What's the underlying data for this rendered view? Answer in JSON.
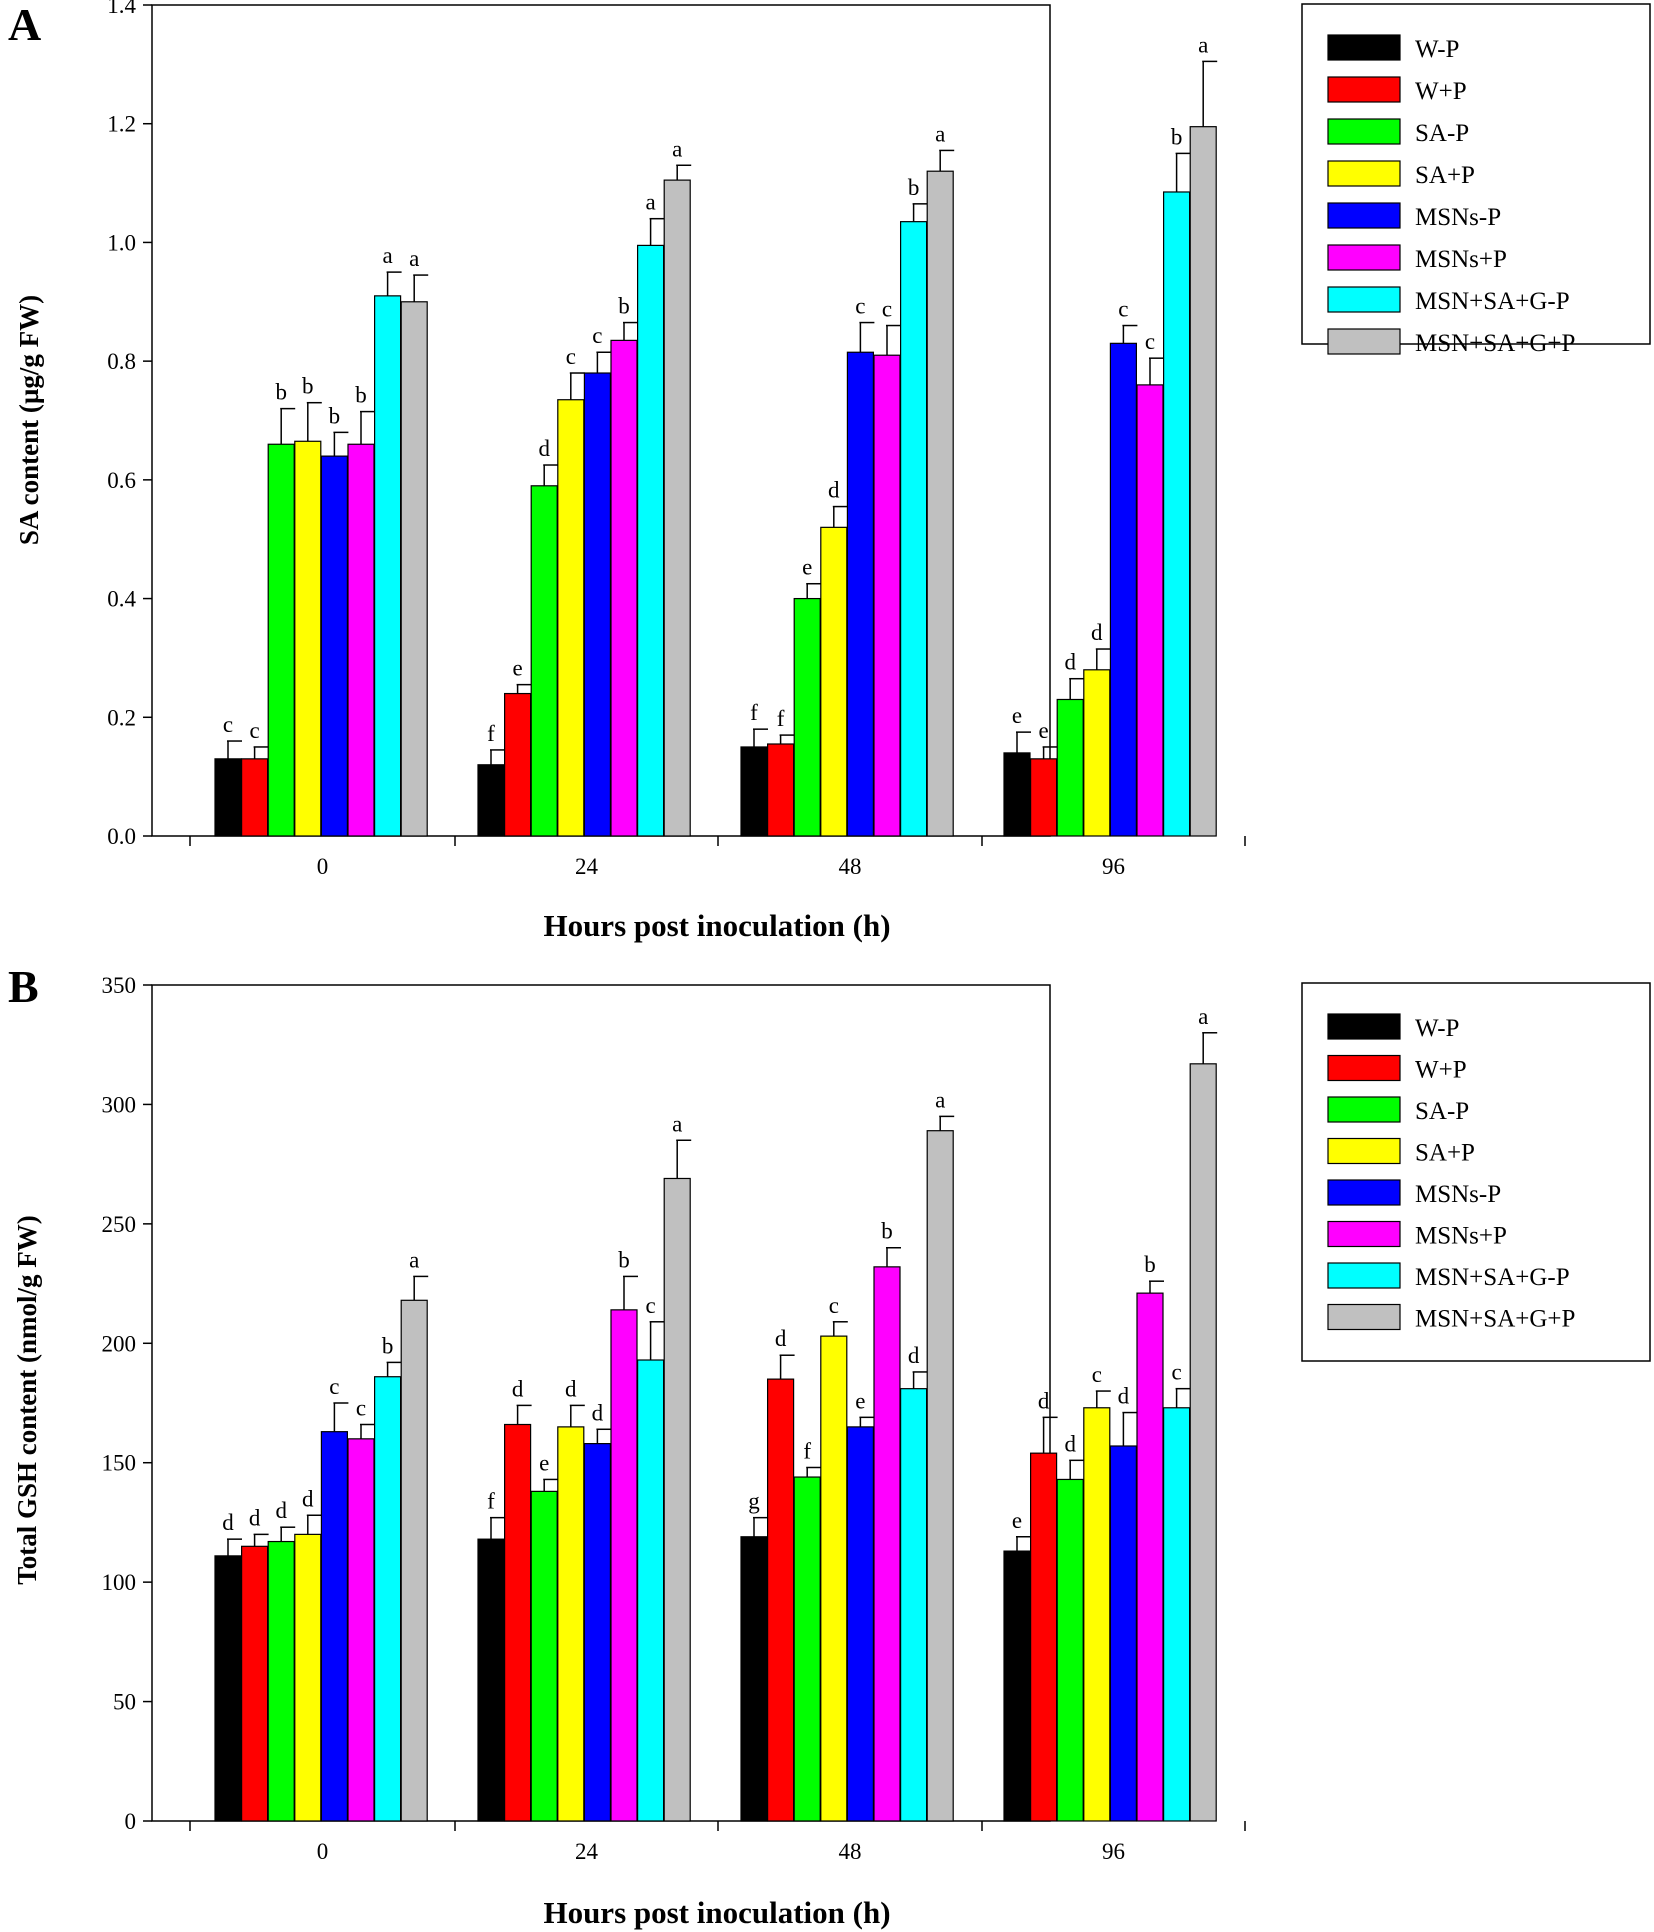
{
  "chart_data": [
    {
      "type": "bar",
      "panel": "A",
      "xlabel": "Hours post inoculation (h)",
      "ylabel": "SA content (µg/g FW)",
      "categories": [
        "0",
        "24",
        "48",
        "96"
      ],
      "ylim": [
        0,
        1.4
      ],
      "yticks": [
        "0.0",
        "0.2",
        "0.4",
        "0.6",
        "0.8",
        "1.0",
        "1.2",
        "1.4"
      ],
      "legend_position": "right",
      "series": [
        {
          "name": "W-P",
          "color": "#000000",
          "values": [
            0.13,
            0.12,
            0.15,
            0.14
          ],
          "errors": [
            0.03,
            0.025,
            0.03,
            0.035
          ],
          "labels": [
            "c",
            "f",
            "f",
            "e"
          ]
        },
        {
          "name": "W+P",
          "color": "#ff0000",
          "values": [
            0.13,
            0.24,
            0.155,
            0.13
          ],
          "errors": [
            0.02,
            0.015,
            0.015,
            0.02
          ],
          "labels": [
            "c",
            "e",
            "f",
            "e"
          ]
        },
        {
          "name": "SA-P",
          "color": "#00ff00",
          "values": [
            0.66,
            0.59,
            0.4,
            0.23
          ],
          "errors": [
            0.06,
            0.035,
            0.025,
            0.035
          ],
          "labels": [
            "b",
            "d",
            "e",
            "d"
          ]
        },
        {
          "name": "SA+P",
          "color": "#ffff00",
          "values": [
            0.665,
            0.735,
            0.52,
            0.28
          ],
          "errors": [
            0.065,
            0.045,
            0.035,
            0.035
          ],
          "labels": [
            "b",
            "c",
            "d",
            "d"
          ]
        },
        {
          "name": "MSNs-P",
          "color": "#0000ff",
          "values": [
            0.64,
            0.78,
            0.815,
            0.83
          ],
          "errors": [
            0.04,
            0.035,
            0.05,
            0.03
          ],
          "labels": [
            "b",
            "c",
            "c",
            "c"
          ]
        },
        {
          "name": "MSNs+P",
          "color": "#ff00ff",
          "values": [
            0.66,
            0.835,
            0.81,
            0.76
          ],
          "errors": [
            0.055,
            0.03,
            0.05,
            0.045
          ],
          "labels": [
            "b",
            "b",
            "c",
            "c"
          ]
        },
        {
          "name": "MSN+SA+G-P",
          "color": "#00ffff",
          "values": [
            0.91,
            0.995,
            1.035,
            1.085
          ],
          "errors": [
            0.04,
            0.045,
            0.03,
            0.065
          ],
          "labels": [
            "a",
            "a",
            "b",
            "b"
          ]
        },
        {
          "name": "MSN+SA+G+P",
          "color": "#c0c0c0",
          "values": [
            0.9,
            1.105,
            1.12,
            1.195
          ],
          "errors": [
            0.045,
            0.025,
            0.035,
            0.11
          ],
          "labels": [
            "a",
            "a",
            "a",
            "a"
          ]
        }
      ]
    },
    {
      "type": "bar",
      "panel": "B",
      "xlabel": "Hours post inoculation (h)",
      "ylabel": "Total GSH content (nmol/g FW)",
      "categories": [
        "0",
        "24",
        "48",
        "96"
      ],
      "ylim": [
        0,
        350
      ],
      "yticks": [
        "0",
        "50",
        "100",
        "150",
        "200",
        "250",
        "300",
        "350"
      ],
      "legend_position": "right",
      "series": [
        {
          "name": "W-P",
          "color": "#000000",
          "values": [
            111,
            118,
            119,
            113
          ],
          "errors": [
            7,
            9,
            8,
            6
          ],
          "labels": [
            "d",
            "f",
            "g",
            "e"
          ]
        },
        {
          "name": "W+P",
          "color": "#ff0000",
          "values": [
            115,
            166,
            185,
            154
          ],
          "errors": [
            5,
            8,
            10,
            15
          ],
          "labels": [
            "d",
            "d",
            "d",
            "d"
          ]
        },
        {
          "name": "SA-P",
          "color": "#00ff00",
          "values": [
            117,
            138,
            144,
            143
          ],
          "errors": [
            6,
            5,
            4,
            8
          ],
          "labels": [
            "d",
            "e",
            "f",
            "d"
          ]
        },
        {
          "name": "SA+P",
          "color": "#ffff00",
          "values": [
            120,
            165,
            203,
            173
          ],
          "errors": [
            8,
            9,
            6,
            7
          ],
          "labels": [
            "d",
            "d",
            "c",
            "c"
          ]
        },
        {
          "name": "MSNs-P",
          "color": "#0000ff",
          "values": [
            163,
            158,
            165,
            157
          ],
          "errors": [
            12,
            6,
            4,
            14
          ],
          "labels": [
            "c",
            "d",
            "e",
            "d"
          ]
        },
        {
          "name": "MSNs+P",
          "color": "#ff00ff",
          "values": [
            160,
            214,
            232,
            221
          ],
          "errors": [
            6,
            14,
            8,
            5
          ],
          "labels": [
            "c",
            "b",
            "b",
            "b"
          ]
        },
        {
          "name": "MSN+SA+G-P",
          "color": "#00ffff",
          "values": [
            186,
            193,
            181,
            173
          ],
          "errors": [
            6,
            16,
            7,
            8
          ],
          "labels": [
            "b",
            "c",
            "d",
            "c"
          ]
        },
        {
          "name": "MSN+SA+G+P",
          "color": "#c0c0c0",
          "values": [
            218,
            269,
            289,
            317
          ],
          "errors": [
            10,
            16,
            6,
            13
          ],
          "labels": [
            "a",
            "a",
            "a",
            "a"
          ]
        }
      ]
    }
  ]
}
